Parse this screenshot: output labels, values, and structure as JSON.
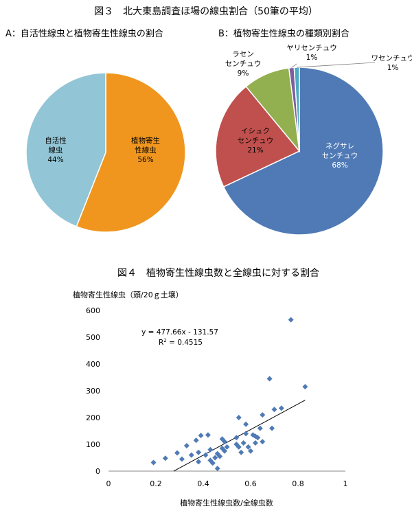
{
  "figure3_title": "図３　北大東島調査ほ場の線虫割合（50筆の平均）",
  "figure4_title": "図４　植物寄生性線虫数と全線虫に対する割合",
  "chart_data": [
    {
      "type": "pie",
      "title": "A：自活性線虫と植物寄生性線虫の割合",
      "slices": [
        {
          "name": "植物寄生性線虫",
          "lines": [
            "植物寄生",
            "性線虫"
          ],
          "value": 56,
          "pct_label": "56%",
          "color": "#f0961e"
        },
        {
          "name": "自活性線虫",
          "lines": [
            "自活性",
            "線虫"
          ],
          "value": 44,
          "pct_label": "44%",
          "color": "#92c5d5"
        }
      ]
    },
    {
      "type": "pie",
      "title": "B：植物寄生性線虫の種類別割合",
      "slices": [
        {
          "name": "ネグサレセンチュウ",
          "lines": [
            "ネグサレ",
            "センチュウ"
          ],
          "value": 68,
          "pct_label": "68%",
          "color": "#4f7ab5"
        },
        {
          "name": "イシュクセンチュウ",
          "lines": [
            "イシュク",
            "センチュウ"
          ],
          "value": 21,
          "pct_label": "21%",
          "color": "#c0504d"
        },
        {
          "name": "ラセンセンチュウ",
          "lines": [
            "ラセン",
            "センチュウ"
          ],
          "value": 9,
          "pct_label": "9%",
          "color": "#93b050"
        },
        {
          "name": "ヤリセンチュウ",
          "lines": [
            "ヤリセンチュウ"
          ],
          "value": 1,
          "pct_label": "1%",
          "color": "#7d5fa0"
        },
        {
          "name": "ワセンチュウ",
          "lines": [
            "ワセンチュウ"
          ],
          "value": 1,
          "pct_label": "1%",
          "color": "#4bacc6"
        }
      ]
    },
    {
      "type": "scatter",
      "ylabel": "植物寄生性線虫（頭/20ｇ土壌）",
      "xlabel": "植物寄生性線虫数/全線虫数",
      "xlim": [
        0,
        1
      ],
      "ylim": [
        0,
        600
      ],
      "xticks": [
        0,
        0.2,
        0.4,
        0.6,
        0.8,
        1
      ],
      "xtick_labels": [
        "0",
        "0.2",
        "0.4",
        "0.6",
        "0.8",
        "1"
      ],
      "yticks": [
        0,
        100,
        200,
        300,
        400,
        500,
        600
      ],
      "ytick_labels": [
        "0",
        "100",
        "200",
        "300",
        "400",
        "500",
        "600"
      ],
      "equation": "y = 477.66x - 131.57",
      "r2_label": "R",
      "r2_value": " = 0.4515",
      "trendline": {
        "slope": 477.66,
        "intercept": -131.57,
        "x_from": 0.275,
        "x_to": 0.83
      },
      "marker_color": "#4f7ab5",
      "points": [
        [
          0.19,
          32
        ],
        [
          0.24,
          48
        ],
        [
          0.29,
          68
        ],
        [
          0.31,
          45
        ],
        [
          0.33,
          95
        ],
        [
          0.35,
          60
        ],
        [
          0.37,
          115
        ],
        [
          0.38,
          70
        ],
        [
          0.38,
          35
        ],
        [
          0.39,
          133
        ],
        [
          0.41,
          60
        ],
        [
          0.42,
          135
        ],
        [
          0.43,
          80
        ],
        [
          0.43,
          40
        ],
        [
          0.44,
          30
        ],
        [
          0.45,
          50
        ],
        [
          0.46,
          65
        ],
        [
          0.46,
          10
        ],
        [
          0.47,
          55
        ],
        [
          0.48,
          120
        ],
        [
          0.48,
          85
        ],
        [
          0.49,
          110
        ],
        [
          0.49,
          75
        ],
        [
          0.5,
          90
        ],
        [
          0.54,
          125
        ],
        [
          0.54,
          100
        ],
        [
          0.55,
          200
        ],
        [
          0.55,
          90
        ],
        [
          0.56,
          70
        ],
        [
          0.57,
          105
        ],
        [
          0.58,
          140
        ],
        [
          0.58,
          175
        ],
        [
          0.59,
          90
        ],
        [
          0.6,
          75
        ],
        [
          0.61,
          135
        ],
        [
          0.62,
          130
        ],
        [
          0.62,
          105
        ],
        [
          0.63,
          125
        ],
        [
          0.64,
          160
        ],
        [
          0.65,
          110
        ],
        [
          0.65,
          210
        ],
        [
          0.68,
          345
        ],
        [
          0.69,
          160
        ],
        [
          0.7,
          230
        ],
        [
          0.73,
          235
        ],
        [
          0.77,
          565
        ],
        [
          0.83,
          315
        ]
      ]
    }
  ]
}
